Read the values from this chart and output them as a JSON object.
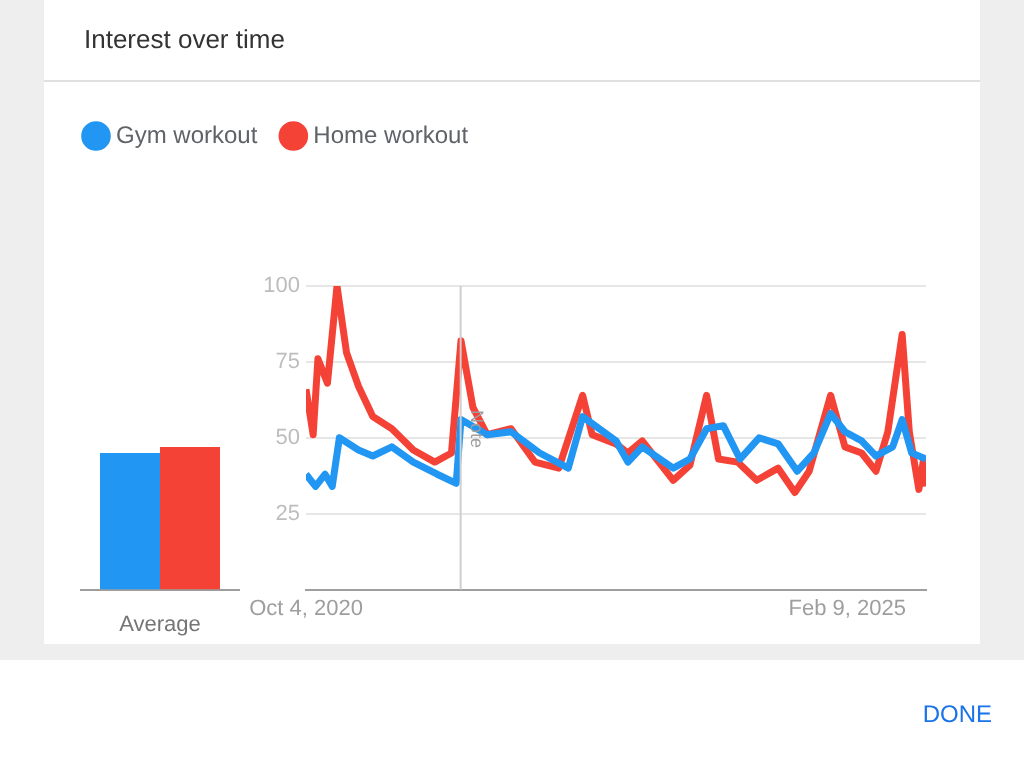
{
  "chart_data": [
    {
      "type": "bar",
      "title": "Interest over time",
      "categories": [
        "Average"
      ],
      "series": [
        {
          "color": "#2196f3",
          "values": [
            45
          ]
        },
        {
          "color": "#f44336",
          "values": [
            47
          ]
        }
      ],
      "ylim": [
        0,
        100
      ],
      "tick_labels": "x"
    },
    {
      "type": "line",
      "series": [
        {
          "name": "Gym workout",
          "color": "#2196f3",
          "x": [
            "2020-10-04",
            "2020-11-01",
            "2020-11-29",
            "2020-12-20",
            "2021-01-10",
            "2021-03-07",
            "2021-04-18",
            "2021-06-13",
            "2021-08-15",
            "2021-10-24",
            "2021-12-19",
            "2022-01-02",
            "2022-03-20",
            "2022-05-29",
            "2022-08-21",
            "2022-11-13",
            "2022-12-25",
            "2023-04-02",
            "2023-05-07",
            "2023-06-18",
            "2023-09-17",
            "2023-11-05",
            "2023-12-24",
            "2024-02-11",
            "2024-03-31",
            "2024-05-26",
            "2024-07-21",
            "2024-09-15",
            "2024-11-03",
            "2024-12-22",
            "2025-02-02",
            "2025-03-23",
            "2025-05-04",
            "2025-06-22",
            "2025-07-20",
            "2025-08-17",
            "2025-09-28"
          ],
          "values": [
            38,
            34,
            38,
            34,
            50,
            46,
            44,
            47,
            42,
            38,
            35,
            56,
            51,
            52,
            45,
            40,
            57,
            49,
            42,
            47,
            40,
            43,
            53,
            54,
            43,
            50,
            48,
            39,
            45,
            58,
            52,
            49,
            44,
            47,
            56,
            45,
            43
          ]
        },
        {
          "name": "Home workout",
          "color": "#f44336",
          "x": [
            "2020-10-04",
            "2020-10-25",
            "2020-11-08",
            "2020-12-06",
            "2021-01-03",
            "2021-01-31",
            "2021-03-07",
            "2021-04-18",
            "2021-06-13",
            "2021-08-15",
            "2021-10-17",
            "2021-12-05",
            "2022-01-02",
            "2022-02-06",
            "2022-03-20",
            "2022-05-29",
            "2022-08-07",
            "2022-10-16",
            "2022-12-25",
            "2023-01-22",
            "2023-04-02",
            "2023-05-07",
            "2023-06-18",
            "2023-09-17",
            "2023-11-05",
            "2023-12-24",
            "2024-01-28",
            "2024-03-24",
            "2024-05-19",
            "2024-07-21",
            "2024-09-08",
            "2024-10-20",
            "2024-12-22",
            "2025-02-02",
            "2025-03-23",
            "2025-05-04",
            "2025-06-08",
            "2025-07-20",
            "2025-08-10",
            "2025-09-07",
            "2025-09-21",
            "2025-09-28"
          ],
          "values": [
            66,
            51,
            76,
            68,
            100,
            78,
            67,
            57,
            53,
            46,
            42,
            45,
            82,
            60,
            51,
            53,
            42,
            40,
            64,
            51,
            48,
            45,
            49,
            36,
            41,
            64,
            43,
            42,
            36,
            40,
            32,
            39,
            64,
            47,
            45,
            39,
            52,
            84,
            52,
            33,
            43,
            34
          ]
        }
      ],
      "xlim": [
        "2020-10-04",
        "2025-09-28"
      ],
      "xticks": [
        {
          "value": "2020-10-04",
          "label": "Oct 4, 2020"
        },
        {
          "value": "2025-02-09",
          "label": "Feb 9, 2025"
        }
      ],
      "ylim": [
        0,
        100
      ],
      "yticks": [
        25,
        50,
        75,
        100
      ],
      "grid": "y",
      "legend": "top left",
      "marker": "none",
      "line_style": "solid",
      "ref_lines": [
        {
          "axis": "x",
          "value": "2022-01-01",
          "label": "Note"
        }
      ],
      "annotations": [
        "DONE"
      ]
    }
  ]
}
